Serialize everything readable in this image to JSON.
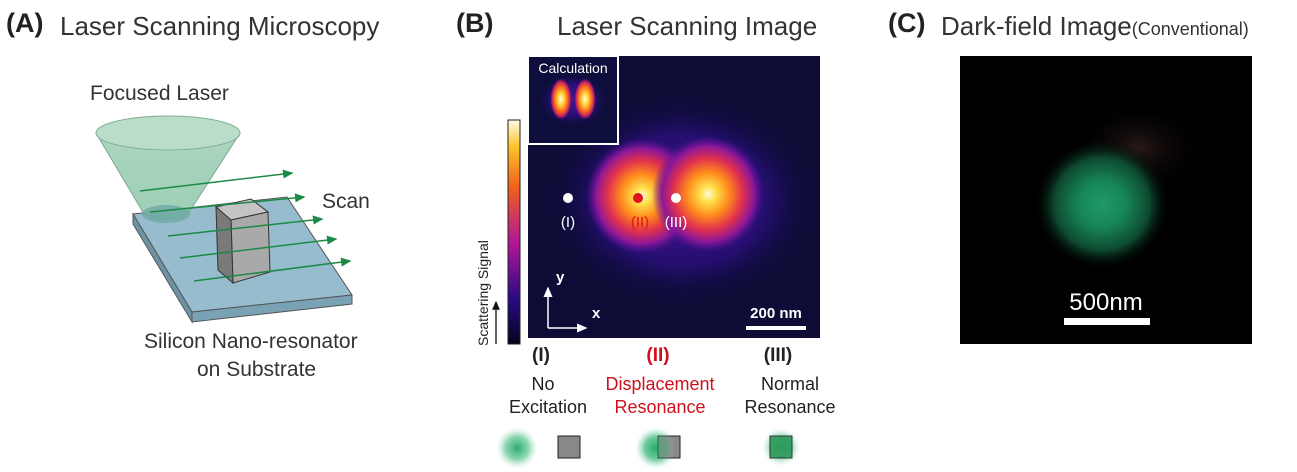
{
  "panelA": {
    "letter": "(A)",
    "title": "Laser Scanning Microscopy",
    "focused_laser": "Focused Laser",
    "scan": "Scan",
    "caption_line1": "Silicon Nano-resonator",
    "caption_line2": "on Substrate"
  },
  "panelB": {
    "letter": "(B)",
    "title": "Laser Scanning Image",
    "inset_label": "Calculation",
    "colorbar_label": "Scattering Signal",
    "axis_y": "y",
    "axis_x": "x",
    "scalebar": "200 nm",
    "points": [
      "(I)",
      "(II)",
      "(III)"
    ],
    "cases": [
      {
        "numeral": "(I)",
        "line1": "No",
        "line2": "Excitation"
      },
      {
        "numeral": "(II)",
        "line1": "Displacement",
        "line2": "Resonance"
      },
      {
        "numeral": "(III)",
        "line1": "Normal",
        "line2": "Resonance"
      }
    ],
    "accent_color": "#d0101c"
  },
  "panelC": {
    "letter": "(C)",
    "title": "Dark-field Image",
    "title_suffix": "(Conventional)",
    "scalebar": "500nm"
  }
}
